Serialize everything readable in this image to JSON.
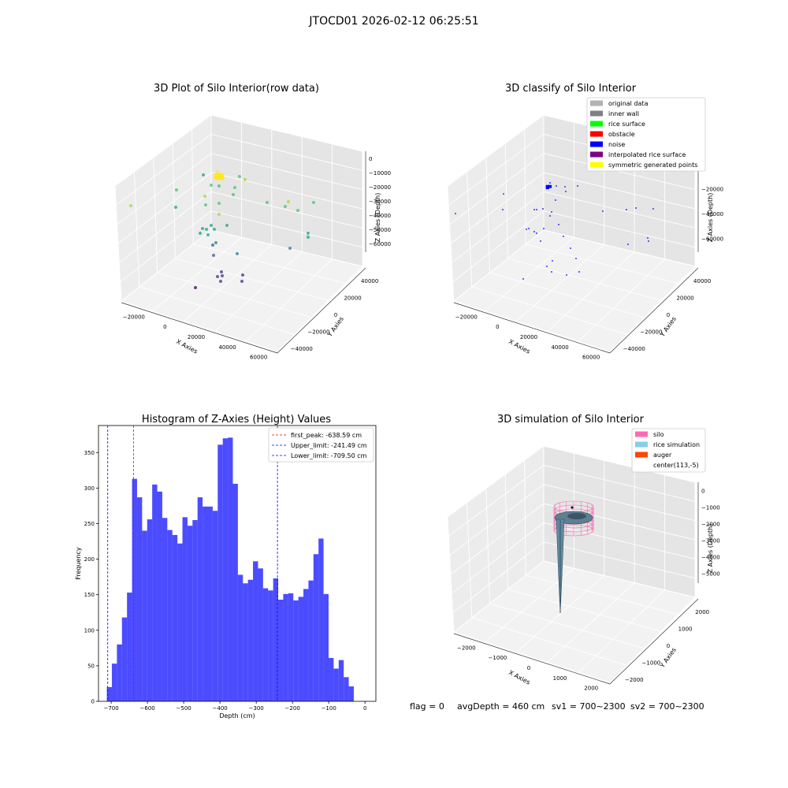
{
  "suptitle": "JTOCD01 2026-02-12 06:25:51",
  "status": {
    "flag": "flag = 0",
    "avg_depth": "avgDepth = 460 cm",
    "sv1": "sv1 = 700~2300",
    "sv2": "sv2 = 700~2300"
  },
  "chart_data": [
    {
      "type": "scatter",
      "projection": "3d",
      "title": "3D Plot of Silo Interior(row data)",
      "xlabel": "X Axies",
      "ylabel": "Y Axies",
      "zlabel": "Z Axies (Depth)",
      "x_ticks": [
        "−20000",
        "0",
        "20000",
        "40000",
        "60000"
      ],
      "y_ticks": [
        "−40000",
        "−20000",
        "0",
        "20000",
        "40000"
      ],
      "z_ticks": [
        "−60000",
        "−50000",
        "−40000",
        "−30000",
        "−20000",
        "−10000",
        "0"
      ],
      "colormap": "viridis",
      "grid": true
    },
    {
      "type": "scatter",
      "projection": "3d",
      "title": "3D classify of Silo Interior",
      "xlabel": "X Axies",
      "ylabel": "Y Axies",
      "zlabel": "Z Axies (Depth)",
      "x_ticks": [
        "−20000",
        "0",
        "20000",
        "40000",
        "60000"
      ],
      "y_ticks": [
        "−40000",
        "−20000",
        "0",
        "20000",
        "40000"
      ],
      "z_ticks": [
        "−60000",
        "−40000",
        "−20000",
        "0"
      ],
      "legend_position": "top-right",
      "legend": [
        {
          "label": "original data",
          "color": "#b3b3b3"
        },
        {
          "label": "inner wall",
          "color": "#808080"
        },
        {
          "label": "rice surface",
          "color": "#00ff00"
        },
        {
          "label": "obstacle",
          "color": "#ff0000"
        },
        {
          "label": "noise",
          "color": "#0000ff"
        },
        {
          "label": "interpolated rice surface",
          "color": "#800080"
        },
        {
          "label": "symmetric generated points",
          "color": "#ffff00"
        }
      ],
      "grid": true
    },
    {
      "type": "bar",
      "title": "Histogram of Z-Axies (Height) Values",
      "xlabel": "Depth (cm)",
      "ylabel": "Frequency",
      "xlim": [
        -735,
        30
      ],
      "ylim": [
        0,
        388
      ],
      "x_ticks": [
        -700,
        -600,
        -500,
        -400,
        -300,
        -200,
        -100,
        0
      ],
      "y_ticks": [
        0,
        50,
        100,
        150,
        200,
        250,
        300,
        350
      ],
      "bin_start": -712,
      "bin_width": 13.9,
      "values": [
        20,
        53,
        80,
        118,
        153,
        313,
        287,
        240,
        256,
        305,
        295,
        258,
        241,
        234,
        222,
        259,
        247,
        255,
        287,
        274,
        274,
        268,
        361,
        370,
        371,
        306,
        178,
        166,
        171,
        197,
        187,
        159,
        156,
        173,
        143,
        151,
        152,
        142,
        147,
        158,
        170,
        207,
        229,
        151,
        61,
        46,
        58,
        34,
        21
      ],
      "bar_color": "#0000ff",
      "lines": [
        {
          "label": "first_peak: -638.59 cm",
          "x": -638.59,
          "color": "#ff0000"
        },
        {
          "label": "Upper_limit: -241.49 cm",
          "x": -241.49,
          "color": "#0000ff"
        },
        {
          "label": "Lower_limit: -709.50 cm",
          "x": -709.5,
          "color": "#0000ff"
        }
      ],
      "legend_position": "top-right"
    },
    {
      "type": "surface",
      "projection": "3d",
      "title": "3D simulation of Silo Interior",
      "xlabel": "X Axies",
      "ylabel": "Y Axies",
      "zlabel": "Z Axies (Depth)",
      "x_ticks": [
        "−2000",
        "−1000",
        "0",
        "1000",
        "2000"
      ],
      "y_ticks": [
        "−2000",
        "−1000",
        "0",
        "1000",
        "2000"
      ],
      "z_ticks": [
        "−5000",
        "−4000",
        "−3000",
        "−2000",
        "−1000",
        "0"
      ],
      "legend_position": "top-right",
      "legend": [
        {
          "label": "silo",
          "color": "#ff69b4"
        },
        {
          "label": "rice simulation",
          "color": "#87ceeb"
        },
        {
          "label": "auger",
          "color": "#ff4500"
        },
        {
          "label": "center(113,-5)",
          "color": "#ffffff"
        }
      ]
    }
  ]
}
